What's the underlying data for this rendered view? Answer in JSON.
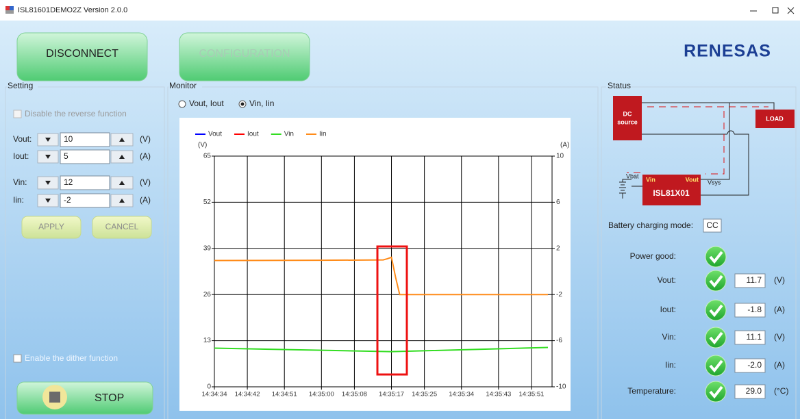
{
  "window": {
    "title": "ISL81601DEMO2Z Version 2.0.0"
  },
  "toolbar": {
    "buttons": [
      "DISCONNECT",
      "CONFIGURATION"
    ],
    "logo": "RENESAS"
  },
  "setting": {
    "title": "Setting",
    "reverse_checkbox": "Disable the reverse function",
    "inputs": [
      {
        "label": "Vout:",
        "value": "10",
        "unit": "(V)"
      },
      {
        "label": "Iout:",
        "value": "5",
        "unit": "(A)"
      },
      {
        "label": "Vin:",
        "value": "12",
        "unit": "(V)"
      },
      {
        "label": "Iin:",
        "value": "-2",
        "unit": "(A)"
      }
    ],
    "apply": "APPLY",
    "cancel": "CANCEL",
    "dither_checkbox": "Enable the dither function",
    "stop": "STOP"
  },
  "monitor": {
    "title": "Monitor",
    "radios": [
      "Vout, Iout",
      "Vin, Iin"
    ]
  },
  "chart_data": {
    "type": "line",
    "ylabel": "(V)",
    "y2label": "(A)",
    "xlim": [
      52474,
      52556
    ],
    "xticks": [
      {
        "value": 52474,
        "label": "14:34:34"
      },
      {
        "value": 52482,
        "label": "14:34:42"
      },
      {
        "value": 52491,
        "label": "14:34:51"
      },
      {
        "value": 52500,
        "label": "14:35:00"
      },
      {
        "value": 52508,
        "label": "14:35:08"
      },
      {
        "value": 52517,
        "label": "14:35:17"
      },
      {
        "value": 52525,
        "label": "14:35:25"
      },
      {
        "value": 52534,
        "label": "14:35:34"
      },
      {
        "value": 52543,
        "label": "14:35:43"
      },
      {
        "value": 52551,
        "label": "14:35:51"
      }
    ],
    "ylim": [
      0,
      65
    ],
    "yticks": [
      0,
      13,
      26,
      39,
      52,
      65
    ],
    "y2lim": [
      -10,
      10
    ],
    "y2ticks": [
      -10,
      -6,
      -2,
      2,
      6,
      10
    ],
    "grid": true,
    "series": [
      {
        "name": "Vout",
        "color": "#0000ff",
        "x": [],
        "values": []
      },
      {
        "name": "Iout",
        "color": "#ff0000",
        "axis": "y2",
        "x": [],
        "values": []
      },
      {
        "name": "Vin",
        "color": "#33dd22",
        "x": [
          52474,
          52517,
          52555
        ],
        "values": [
          10.9,
          9.9,
          11.1
        ]
      },
      {
        "name": "Iin",
        "color": "#ff8c1a",
        "axis": "y2",
        "x": [
          52474,
          52500,
          52515,
          52516,
          52517,
          52518,
          52519,
          52555
        ],
        "values": [
          0.95,
          0.97,
          1.0,
          1.1,
          1.23,
          -0.5,
          -2.0,
          -2.0
        ]
      }
    ]
  },
  "status": {
    "title": "Status",
    "diagram": {
      "source": [
        "DC",
        "source"
      ],
      "load": "LOAD",
      "chip": "ISL81X01",
      "vin": "Vin",
      "vout": "Vout",
      "vsys": "Vsys",
      "vbat": "Vbat"
    },
    "mode_label": "Battery charging mode:",
    "mode": "CC",
    "rows": [
      {
        "label": "Power good:"
      },
      {
        "label": "Vout:",
        "value": "11.7",
        "unit": "(V)"
      },
      {
        "label": "Iout:",
        "value": "-1.8",
        "unit": "(A)"
      },
      {
        "label": "Vin:",
        "value": "11.1",
        "unit": "(V)"
      },
      {
        "label": "Iin:",
        "value": "-2.0",
        "unit": "(A)"
      },
      {
        "label": "Temperature:",
        "value": "29.0",
        "unit": "(°C)"
      }
    ]
  }
}
